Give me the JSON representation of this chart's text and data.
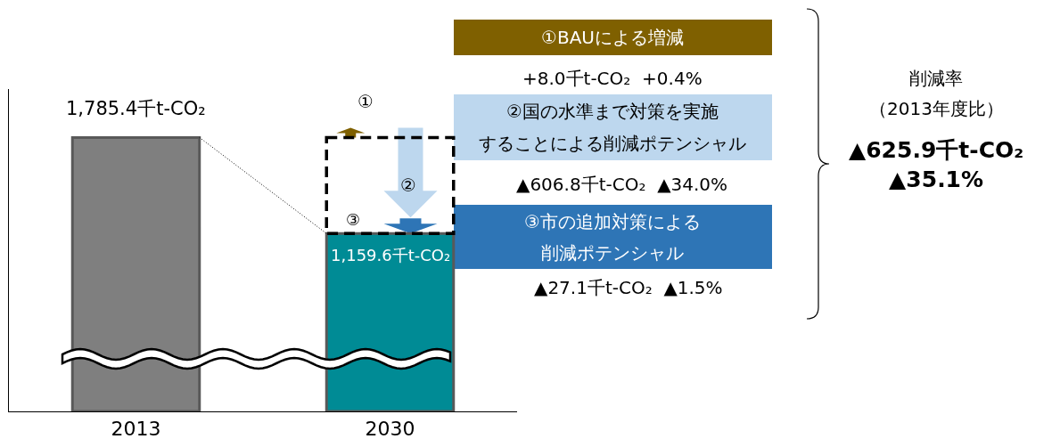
{
  "chart_data": {
    "type": "bar",
    "categories": [
      "2013",
      "2030"
    ],
    "values": [
      1785.4,
      1159.6
    ],
    "colors": [
      "#7f7f7f",
      "#008b95"
    ],
    "value_labels": [
      "1,785.4千t-CO₂",
      "1,159.6千t-CO₂"
    ],
    "tick_labels": "x",
    "annotations": [
      "①",
      "①BAUによる増減",
      "+8.0千t-CO₂  +0.4%",
      "②国の水準まで対策を実施",
      "することによる削減ポテンシャル",
      "▲606.8千t-CO₂  ▲34.0%",
      "②",
      "③市の追加対策による",
      "削減ポテンシャル",
      "▲27.1千t-CO₂  ▲1.5%",
      "③",
      "削減率",
      "（2013年度比）",
      "▲625.9千t-CO₂\n▲35.1%"
    ]
  }
}
